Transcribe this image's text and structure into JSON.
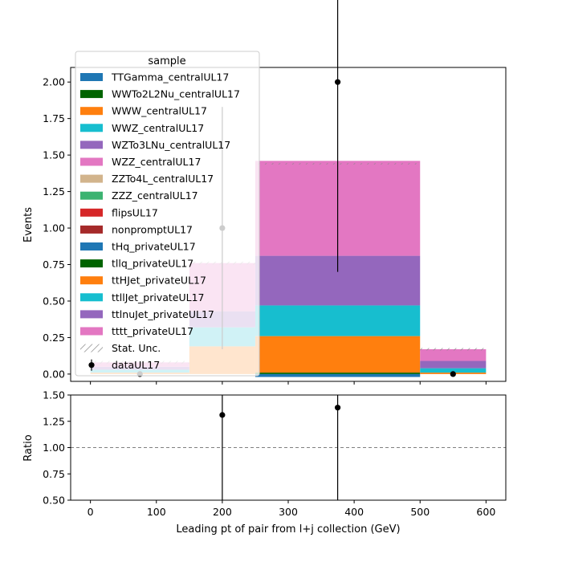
{
  "chart_data": [
    {
      "type": "bar",
      "stacked": true,
      "x": {
        "label": "Leading pt of pair from l+j collection (GeV)",
        "range": [
          -30,
          630
        ],
        "ticks": [
          0,
          100,
          200,
          300,
          400,
          500,
          600
        ],
        "tick_labels": [
          "0",
          "100",
          "200",
          "300",
          "400",
          "500",
          "600"
        ]
      },
      "y": {
        "label": "Events",
        "range": [
          -0.05,
          2.1
        ],
        "ticks": [
          0,
          0.25,
          0.5,
          0.75,
          1.0,
          1.25,
          1.5,
          1.75,
          2.0
        ],
        "tick_labels": [
          "0.00",
          "0.25",
          "0.50",
          "0.75",
          "1.00",
          "1.25",
          "1.50",
          "1.75",
          "2.00"
        ]
      },
      "bins": [
        [
          0,
          150
        ],
        [
          150,
          250
        ],
        [
          250,
          500
        ],
        [
          500,
          600
        ]
      ],
      "series": [
        {
          "name": "TTGamma_centralUL17",
          "color": "#1f77b4",
          "values": [
            0,
            0,
            0,
            0
          ]
        },
        {
          "name": "WWTo2L2Nu_centralUL17",
          "color": "#006400",
          "values": [
            0,
            0,
            0,
            0
          ]
        },
        {
          "name": "WWW_centralUL17",
          "color": "#ff7f0e",
          "values": [
            0,
            0,
            0,
            0
          ]
        },
        {
          "name": "WWZ_centralUL17",
          "color": "#17becf",
          "values": [
            0,
            0,
            0,
            0
          ]
        },
        {
          "name": "WZTo3LNu_centralUL17",
          "color": "#9467bd",
          "values": [
            0,
            0,
            0,
            0
          ]
        },
        {
          "name": "WZZ_centralUL17",
          "color": "#e377c2",
          "values": [
            0,
            0,
            0,
            0
          ]
        },
        {
          "name": "ZZTo4L_centralUL17",
          "color": "#d2b48c",
          "values": [
            0,
            0,
            0,
            0
          ]
        },
        {
          "name": "ZZZ_centralUL17",
          "color": "#3cb371",
          "values": [
            0,
            0,
            0,
            0
          ]
        },
        {
          "name": "flipsUL17",
          "color": "#d62728",
          "values": [
            0,
            0,
            0,
            0
          ]
        },
        {
          "name": "nonpromptUL17",
          "color": "#a52a2a",
          "values": [
            0,
            0,
            0,
            0
          ]
        },
        {
          "name": "tHq_privateUL17",
          "color": "#1f77b4",
          "values": [
            0,
            0,
            -0.02,
            0
          ]
        },
        {
          "name": "tllq_privateUL17",
          "color": "#006400",
          "values": [
            0,
            0,
            0.01,
            0
          ]
        },
        {
          "name": "ttHJet_privateUL17",
          "color": "#ff7f0e",
          "values": [
            0.01,
            0.19,
            0.25,
            0.01
          ]
        },
        {
          "name": "ttllJet_privateUL17",
          "color": "#17becf",
          "values": [
            0.02,
            0.13,
            0.21,
            0.03
          ]
        },
        {
          "name": "ttlnuJet_privateUL17",
          "color": "#9467bd",
          "values": [
            0.02,
            0.11,
            0.34,
            0.05
          ]
        },
        {
          "name": "tttt_privateUL17",
          "color": "#e377c2",
          "values": [
            0.03,
            0.33,
            0.65,
            0.08
          ]
        }
      ],
      "stat_unc_label": "Stat. Unc.",
      "data": {
        "name": "dataUL17",
        "x": [
          75,
          200,
          375,
          550
        ],
        "y": [
          0,
          1,
          2,
          0
        ],
        "yerr": [
          0,
          0.83,
          1.3,
          0
        ]
      },
      "legend": {
        "title": "sample",
        "placement": "top-left"
      }
    },
    {
      "type": "scatter",
      "x": {
        "label": "Leading pt of pair from l+j collection (GeV)",
        "range": [
          -30,
          630
        ],
        "ticks": [
          0,
          100,
          200,
          300,
          400,
          500,
          600
        ],
        "tick_labels": [
          "0",
          "100",
          "200",
          "300",
          "400",
          "500",
          "600"
        ]
      },
      "y": {
        "label": "Ratio",
        "range": [
          0.5,
          1.5
        ],
        "ticks": [
          0.5,
          0.75,
          1.0,
          1.25,
          1.5
        ],
        "tick_labels": [
          "0.50",
          "0.75",
          "1.00",
          "1.25",
          "1.50"
        ]
      },
      "reference_line": 1.0,
      "points": [
        {
          "x": 200,
          "y": 1.31
        },
        {
          "x": 375,
          "y": 1.38
        }
      ]
    }
  ]
}
